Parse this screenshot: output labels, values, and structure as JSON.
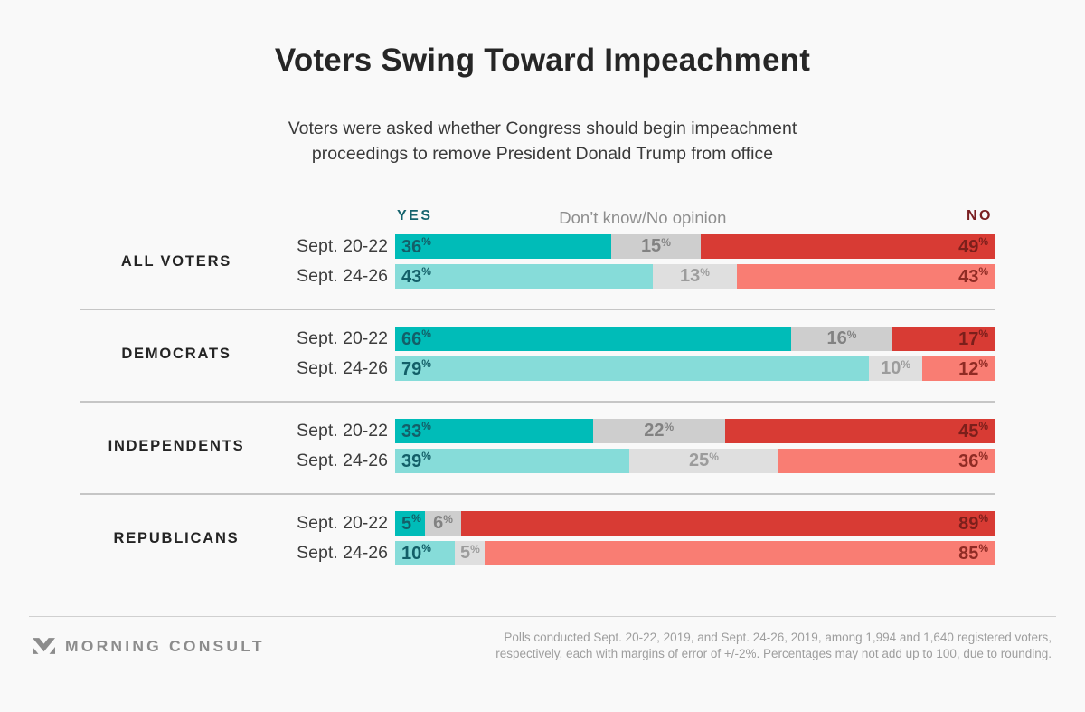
{
  "title": "Voters Swing Toward Impeachment",
  "subtitle": {
    "line1": "Voters were asked whether Congress should begin impeachment",
    "line2": "proceedings to remove President Donald Trump from office"
  },
  "legend": {
    "yes": "YES",
    "dont_know": "Don’t know/No opinion",
    "no": "NO"
  },
  "ui": {
    "percent_sign": "%"
  },
  "chart_data": {
    "type": "bar",
    "orientation": "horizontal_stacked",
    "unit": "percent",
    "axis_range": [
      0,
      100
    ],
    "series_labels": [
      "Yes",
      "Don't know/No opinion",
      "No"
    ],
    "colors": {
      "yes_row1": "#00bcb8",
      "yes_row2": "#86dcd9",
      "dont_know_row1": "#cecece",
      "dont_know_row2": "#dfdfdf",
      "no_row1": "#d83b34",
      "no_row2": "#f97d73",
      "yes_header_text": "#16646e",
      "no_header_text": "#7a2022"
    },
    "groups": [
      {
        "label": "ALL VOTERS",
        "rows": [
          {
            "date": "Sept. 20-22",
            "yes": 36,
            "dk": 15,
            "no": 49
          },
          {
            "date": "Sept. 24-26",
            "yes": 43,
            "dk": 13,
            "no": 43
          }
        ]
      },
      {
        "label": "DEMOCRATS",
        "rows": [
          {
            "date": "Sept. 20-22",
            "yes": 66,
            "dk": 16,
            "no": 17
          },
          {
            "date": "Sept. 24-26",
            "yes": 79,
            "dk": 10,
            "no": 12
          }
        ]
      },
      {
        "label": "INDEPENDENTS",
        "rows": [
          {
            "date": "Sept. 20-22",
            "yes": 33,
            "dk": 22,
            "no": 45
          },
          {
            "date": "Sept. 24-26",
            "yes": 39,
            "dk": 25,
            "no": 36
          }
        ]
      },
      {
        "label": "REPUBLICANS",
        "rows": [
          {
            "date": "Sept. 20-22",
            "yes": 5,
            "dk": 6,
            "no": 89
          },
          {
            "date": "Sept. 24-26",
            "yes": 10,
            "dk": 5,
            "no": 85
          }
        ]
      }
    ]
  },
  "footer": {
    "brand": "MORNING CONSULT",
    "note_line1": "Polls conducted Sept. 20-22, 2019, and Sept. 24-26, 2019, among 1,994 and 1,640 registered voters,",
    "note_line2": "respectively, each with margins of error of +/-2%. Percentages may not add up to 100, due to rounding."
  }
}
